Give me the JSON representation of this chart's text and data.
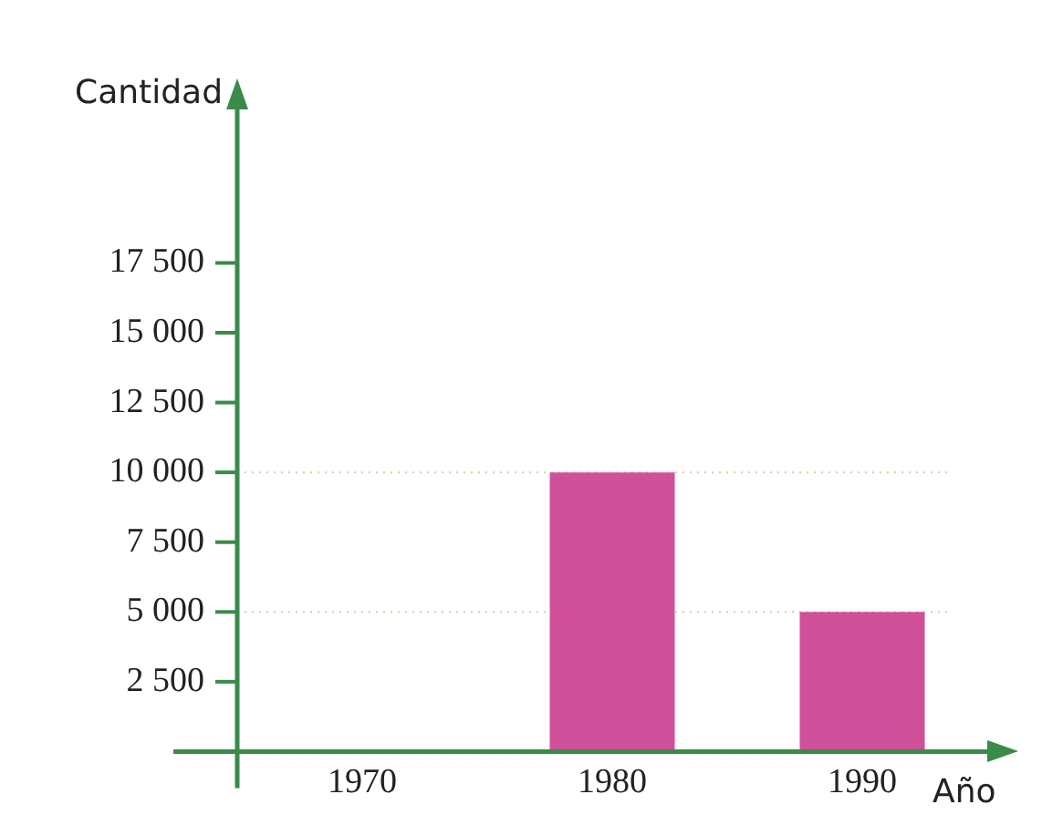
{
  "chart_data": {
    "type": "bar",
    "xlabel": "Año",
    "ylabel": "Cantidad",
    "categories": [
      "1970",
      "1980",
      "1990"
    ],
    "values": [
      null,
      10000,
      5000
    ],
    "color": "#d0509a",
    "ylim": [
      0,
      23000
    ],
    "yticks": [
      {
        "value": 2500,
        "label": "2 500"
      },
      {
        "value": 5000,
        "label": "5 000"
      },
      {
        "value": 7500,
        "label": "7 500"
      },
      {
        "value": 10000,
        "label": "10 000"
      },
      {
        "value": 12500,
        "label": "12 500"
      },
      {
        "value": 15000,
        "label": "15 000"
      },
      {
        "value": 17500,
        "label": "17 500"
      }
    ],
    "ref_lines": [
      {
        "axis": "y",
        "value": 10000,
        "color": "#c8d8a0",
        "line_style": "dotted"
      },
      {
        "axis": "y",
        "value": 5000,
        "color": "#c8d8a0",
        "line_style": "dotted"
      }
    ],
    "grid": false,
    "legend": false
  }
}
